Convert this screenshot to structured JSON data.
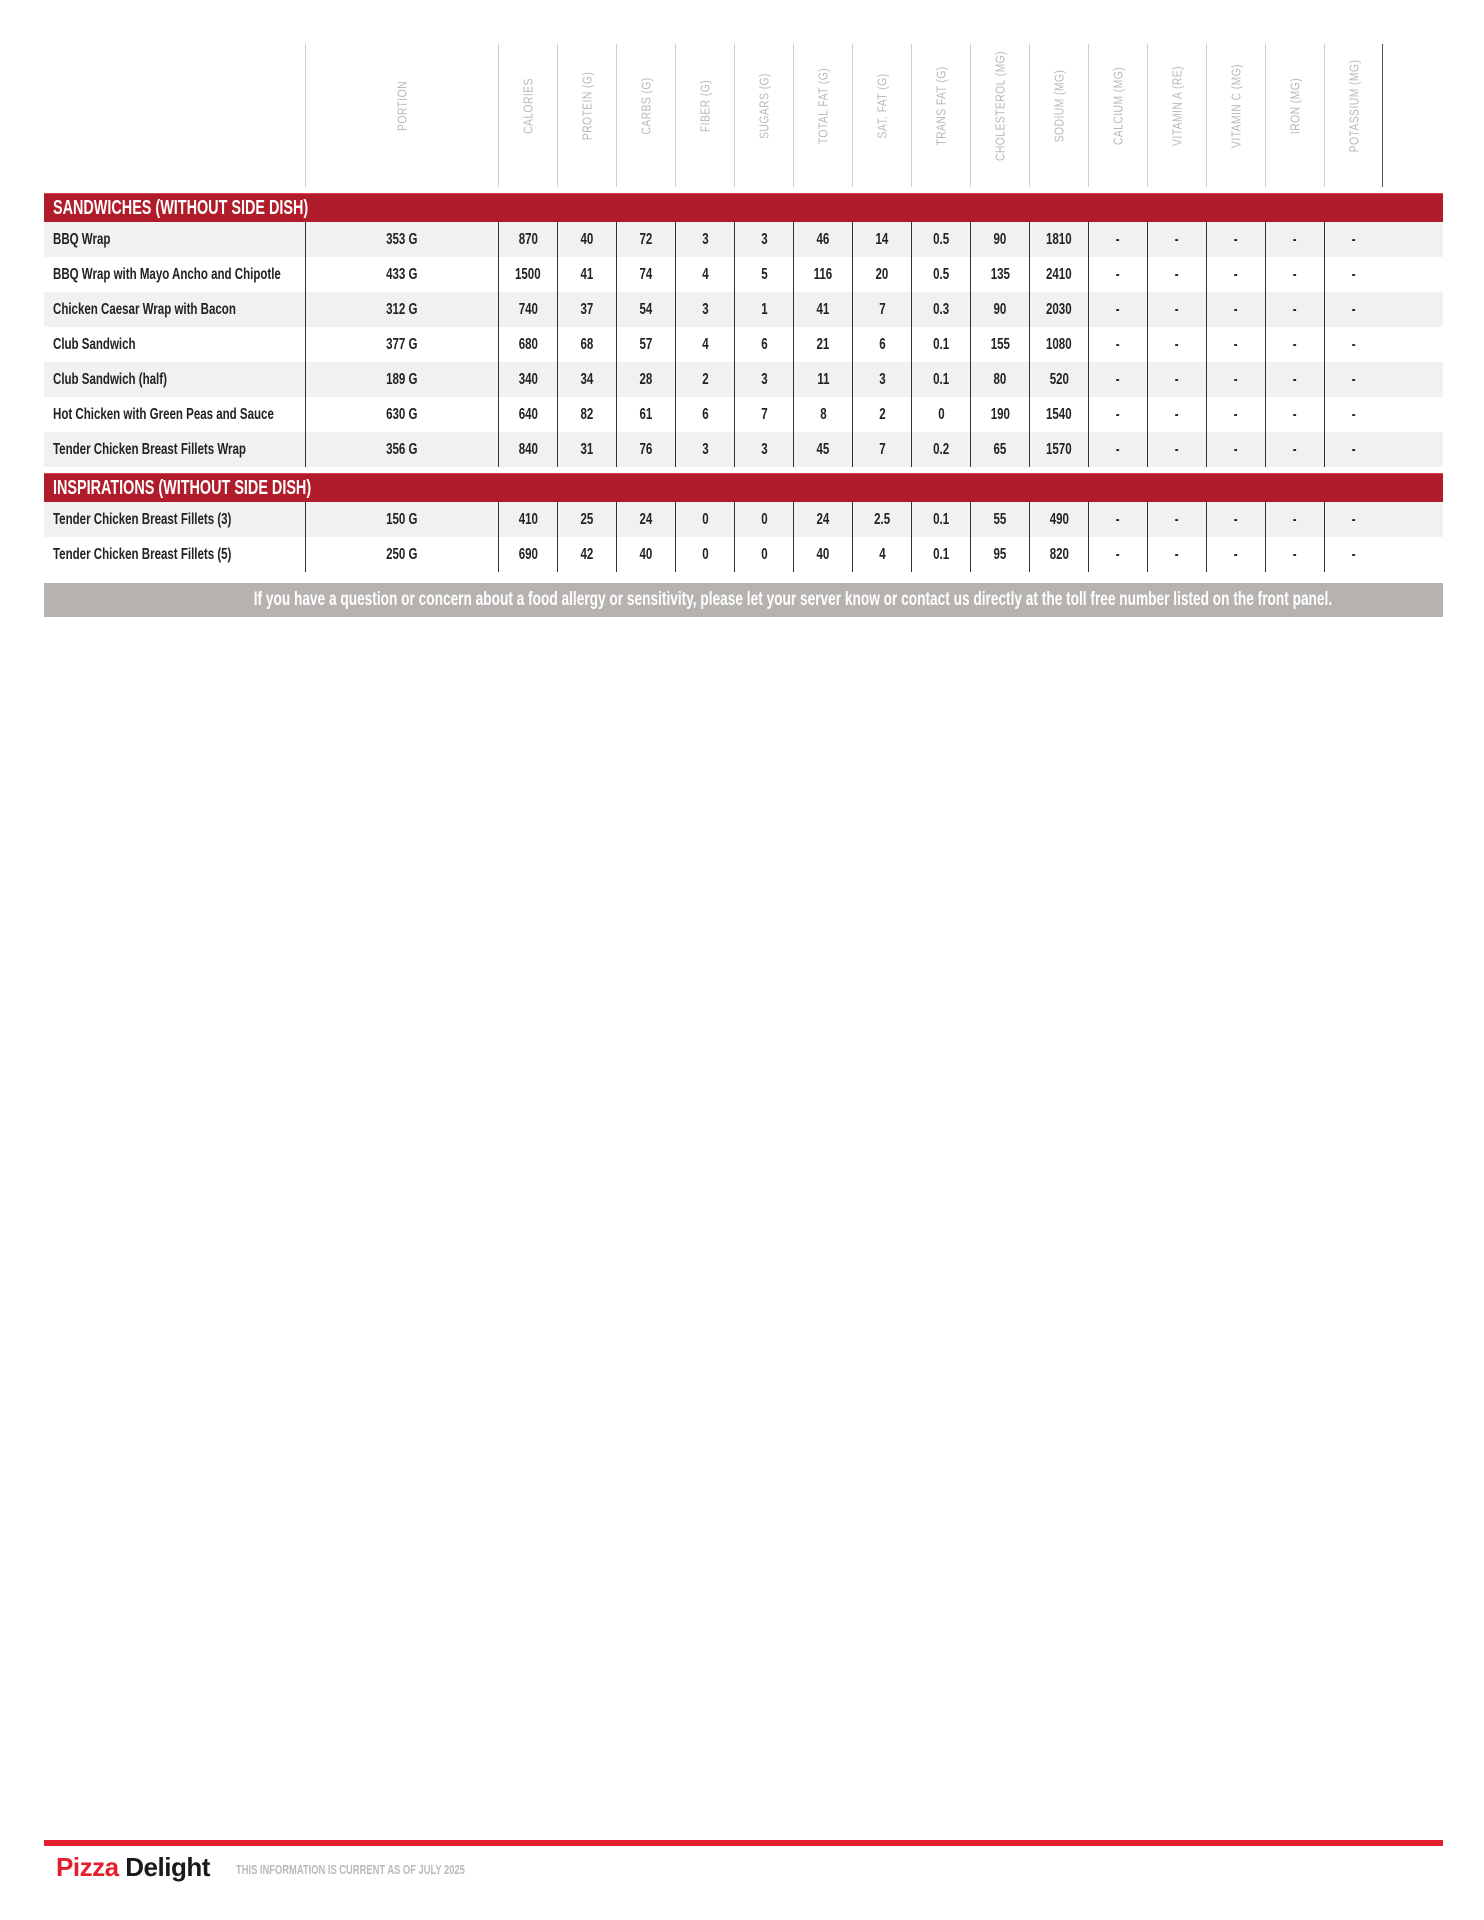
{
  "columns": [
    "PORTION",
    "CALORIES",
    "PROTEIN (G)",
    "CARBS (G)",
    "FIBER (G)",
    "SUGARS (G)",
    "TOTAL FAT (G)",
    "SAT. FAT (G)",
    "TRANS FAT (G)",
    "CHOLESTEROL (MG)",
    "SODIUM (MG)",
    "CALCIUM (MG)",
    "VITAMIN A (RE)",
    "VITAMIN C (MG)",
    "IRON (MG)",
    "POTASSIUM (MG)"
  ],
  "sections": [
    {
      "title": "SANDWICHES (WITHOUT SIDE DISH)",
      "rows": [
        {
          "name": "BBQ Wrap",
          "values": [
            "353 G",
            "870",
            "40",
            "72",
            "3",
            "3",
            "46",
            "14",
            "0.5",
            "90",
            "1810",
            "-",
            "-",
            "-",
            "-",
            "-"
          ]
        },
        {
          "name": "BBQ Wrap with Mayo Ancho and Chipotle",
          "values": [
            "433 G",
            "1500",
            "41",
            "74",
            "4",
            "5",
            "116",
            "20",
            "0.5",
            "135",
            "2410",
            "-",
            "-",
            "-",
            "-",
            "-"
          ]
        },
        {
          "name": "Chicken Caesar Wrap with Bacon",
          "values": [
            "312 G",
            "740",
            "37",
            "54",
            "3",
            "1",
            "41",
            "7",
            "0.3",
            "90",
            "2030",
            "-",
            "-",
            "-",
            "-",
            "-"
          ]
        },
        {
          "name": "Club Sandwich",
          "values": [
            "377 G",
            "680",
            "68",
            "57",
            "4",
            "6",
            "21",
            "6",
            "0.1",
            "155",
            "1080",
            "-",
            "-",
            "-",
            "-",
            "-"
          ]
        },
        {
          "name": "Club Sandwich (half)",
          "values": [
            "189 G",
            "340",
            "34",
            "28",
            "2",
            "3",
            "11",
            "3",
            "0.1",
            "80",
            "520",
            "-",
            "-",
            "-",
            "-",
            "-"
          ]
        },
        {
          "name": "Hot Chicken with Green Peas and Sauce",
          "values": [
            "630 G",
            "640",
            "82",
            "61",
            "6",
            "7",
            "8",
            "2",
            "0",
            "190",
            "1540",
            "-",
            "-",
            "-",
            "-",
            "-"
          ]
        },
        {
          "name": "Tender Chicken Breast Fillets Wrap",
          "values": [
            "356 G",
            "840",
            "31",
            "76",
            "3",
            "3",
            "45",
            "7",
            "0.2",
            "65",
            "1570",
            "-",
            "-",
            "-",
            "-",
            "-"
          ]
        }
      ]
    },
    {
      "title": "INSPIRATIONS (WITHOUT SIDE DISH)",
      "rows": [
        {
          "name": "Tender Chicken Breast Fillets (3)",
          "values": [
            "150 G",
            "410",
            "25",
            "24",
            "0",
            "0",
            "24",
            "2.5",
            "0.1",
            "55",
            "490",
            "-",
            "-",
            "-",
            "-",
            "-"
          ]
        },
        {
          "name": "Tender Chicken Breast Fillets (5)",
          "values": [
            "250 G",
            "690",
            "42",
            "40",
            "0",
            "0",
            "40",
            "4",
            "0.1",
            "95",
            "820",
            "-",
            "-",
            "-",
            "-",
            "-"
          ]
        }
      ]
    }
  ],
  "disclaimer": "If you have a question or concern about a food allergy or sensitivity, please let your server know or contact us directly at the toll free number listed on the front panel.",
  "footer": {
    "brand_part1": "Pizza",
    "brand_part2": "Delight",
    "as_of": "THIS INFORMATION IS CURRENT AS OF JULY 2025"
  },
  "colors": {
    "section_red": "#b01c2a",
    "brand_red": "#e31e2d",
    "disclaimer_gray": "#b5b2b0"
  }
}
